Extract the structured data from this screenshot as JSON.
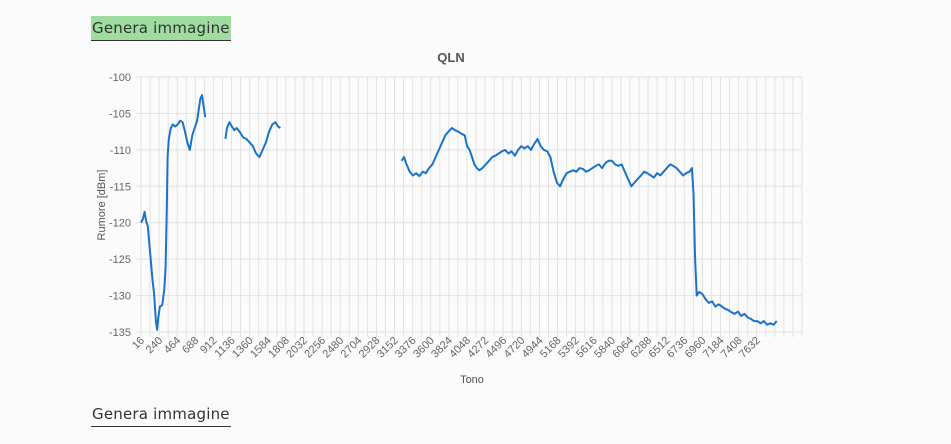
{
  "buttons": {
    "generate_top": "Genera immagine",
    "generate_bottom": "Genera immagine"
  },
  "colors": {
    "line": "#1a73c9",
    "grid": "#e2e2e2",
    "button_active_bg": "#9fdc9f"
  },
  "chart_data": {
    "type": "line",
    "title": "QLN",
    "xlabel": "Tono",
    "ylabel": "Rumore [dBm]",
    "ylim": [
      -135,
      -100
    ],
    "xlim": [
      16,
      8192
    ],
    "grid": true,
    "y_ticks": [
      "-100",
      "-105",
      "-110",
      "-115",
      "-120",
      "-125",
      "-130",
      "-135"
    ],
    "x_ticks": [
      "16",
      "240",
      "464",
      "688",
      "912",
      "1136",
      "1360",
      "1584",
      "1808",
      "2032",
      "2256",
      "2480",
      "2704",
      "2928",
      "3152",
      "3376",
      "3600",
      "3824",
      "4048",
      "4272",
      "4496",
      "4720",
      "4944",
      "5168",
      "5392",
      "5616",
      "5840",
      "6064",
      "6288",
      "6512",
      "6736",
      "6960",
      "7184",
      "7408",
      "7632"
    ],
    "series": [
      {
        "segments": [
          [
            [
              16,
              -120
            ],
            [
              40,
              -119.5
            ],
            [
              60,
              -118.5
            ],
            [
              80,
              -119.8
            ],
            [
              100,
              -120.5
            ],
            [
              120,
              -123
            ],
            [
              140,
              -125.5
            ],
            [
              160,
              -128
            ],
            [
              175,
              -129.5
            ],
            [
              185,
              -131
            ],
            [
              200,
              -133.5
            ],
            [
              215,
              -134.7
            ],
            [
              230,
              -133
            ],
            [
              250,
              -131.5
            ],
            [
              280,
              -131.3
            ],
            [
              305,
              -129
            ],
            [
              320,
              -126
            ],
            [
              335,
              -118
            ],
            [
              345,
              -111
            ],
            [
              360,
              -108.5
            ],
            [
              385,
              -107
            ],
            [
              410,
              -106.5
            ],
            [
              440,
              -106.8
            ],
            [
              470,
              -106.5
            ],
            [
              500,
              -106
            ],
            [
              530,
              -106.2
            ],
            [
              560,
              -107.5
            ],
            [
              590,
              -109
            ],
            [
              620,
              -110
            ],
            [
              650,
              -108
            ],
            [
              680,
              -107
            ],
            [
              710,
              -106
            ],
            [
              730,
              -104.5
            ],
            [
              750,
              -103
            ],
            [
              770,
              -102.5
            ],
            [
              790,
              -104
            ],
            [
              810,
              -105.5
            ]
          ],
          [
            [
              1060,
              -108.5
            ],
            [
              1080,
              -107
            ],
            [
              1110,
              -106.2
            ],
            [
              1140,
              -106.8
            ],
            [
              1170,
              -107.3
            ],
            [
              1200,
              -107
            ],
            [
              1240,
              -107.6
            ],
            [
              1280,
              -108.3
            ],
            [
              1320,
              -108.5
            ],
            [
              1360,
              -109
            ],
            [
              1400,
              -109.5
            ],
            [
              1440,
              -110.5
            ],
            [
              1480,
              -111
            ],
            [
              1520,
              -110
            ],
            [
              1560,
              -109
            ],
            [
              1600,
              -107.5
            ],
            [
              1640,
              -106.5
            ],
            [
              1680,
              -106.2
            ],
            [
              1710,
              -106.8
            ],
            [
              1740,
              -107
            ]
          ],
          [
            [
              3240,
              -111.5
            ],
            [
              3270,
              -111
            ],
            [
              3300,
              -112
            ],
            [
              3340,
              -113
            ],
            [
              3380,
              -113.5
            ],
            [
              3420,
              -113.2
            ],
            [
              3460,
              -113.6
            ],
            [
              3500,
              -113
            ],
            [
              3540,
              -113.2
            ],
            [
              3580,
              -112.5
            ],
            [
              3620,
              -112
            ],
            [
              3660,
              -111
            ],
            [
              3700,
              -110
            ],
            [
              3740,
              -109
            ],
            [
              3780,
              -108
            ],
            [
              3820,
              -107.5
            ],
            [
              3860,
              -107
            ],
            [
              3900,
              -107.3
            ],
            [
              3940,
              -107.5
            ],
            [
              3980,
              -107.8
            ],
            [
              4020,
              -108
            ],
            [
              4050,
              -109.5
            ],
            [
              4080,
              -110
            ],
            [
              4110,
              -111
            ],
            [
              4140,
              -112
            ],
            [
              4170,
              -112.5
            ],
            [
              4200,
              -112.8
            ],
            [
              4240,
              -112.5
            ],
            [
              4280,
              -112
            ],
            [
              4320,
              -111.5
            ],
            [
              4360,
              -111
            ],
            [
              4400,
              -110.8
            ],
            [
              4440,
              -110.5
            ],
            [
              4480,
              -110.2
            ],
            [
              4520,
              -110
            ],
            [
              4560,
              -110.5
            ],
            [
              4600,
              -110.2
            ],
            [
              4640,
              -110.8
            ],
            [
              4680,
              -110
            ],
            [
              4720,
              -109.5
            ],
            [
              4760,
              -109.8
            ],
            [
              4800,
              -109.5
            ],
            [
              4840,
              -110
            ],
            [
              4880,
              -109.2
            ],
            [
              4920,
              -108.5
            ],
            [
              4960,
              -109.5
            ],
            [
              5000,
              -110
            ],
            [
              5040,
              -110.2
            ],
            [
              5080,
              -111
            ],
            [
              5120,
              -113
            ],
            [
              5160,
              -114.5
            ],
            [
              5200,
              -115
            ],
            [
              5240,
              -114
            ],
            [
              5280,
              -113.2
            ],
            [
              5320,
              -113
            ],
            [
              5360,
              -112.8
            ],
            [
              5400,
              -113
            ],
            [
              5440,
              -112.5
            ],
            [
              5480,
              -112.6
            ],
            [
              5520,
              -113
            ],
            [
              5560,
              -112.8
            ],
            [
              5600,
              -112.5
            ],
            [
              5640,
              -112.2
            ],
            [
              5680,
              -112
            ],
            [
              5720,
              -112.5
            ],
            [
              5760,
              -111.8
            ],
            [
              5800,
              -111.5
            ],
            [
              5840,
              -111.5
            ],
            [
              5880,
              -112
            ],
            [
              5920,
              -112.2
            ],
            [
              5960,
              -112
            ],
            [
              6000,
              -113
            ],
            [
              6040,
              -114
            ],
            [
              6080,
              -115
            ],
            [
              6120,
              -114.5
            ],
            [
              6160,
              -114
            ],
            [
              6200,
              -113.5
            ],
            [
              6240,
              -113
            ],
            [
              6280,
              -113.2
            ],
            [
              6320,
              -113.5
            ],
            [
              6360,
              -113.8
            ],
            [
              6400,
              -113.2
            ],
            [
              6440,
              -113.5
            ],
            [
              6480,
              -113
            ],
            [
              6520,
              -112.5
            ],
            [
              6560,
              -112
            ],
            [
              6600,
              -112.2
            ],
            [
              6640,
              -112.5
            ],
            [
              6680,
              -113
            ],
            [
              6720,
              -113.5
            ],
            [
              6760,
              -113.2
            ],
            [
              6800,
              -113
            ],
            [
              6830,
              -112.5
            ],
            [
              6850,
              -116
            ],
            [
              6870,
              -125
            ],
            [
              6890,
              -130
            ],
            [
              6920,
              -129.5
            ],
            [
              6960,
              -129.8
            ],
            [
              7000,
              -130.5
            ],
            [
              7040,
              -131
            ],
            [
              7080,
              -130.8
            ],
            [
              7120,
              -131.5
            ],
            [
              7160,
              -131.2
            ],
            [
              7200,
              -131.5
            ],
            [
              7240,
              -131.8
            ],
            [
              7280,
              -132
            ],
            [
              7320,
              -132.3
            ],
            [
              7360,
              -132.5
            ],
            [
              7400,
              -132.2
            ],
            [
              7440,
              -132.8
            ],
            [
              7480,
              -132.5
            ],
            [
              7520,
              -133
            ],
            [
              7560,
              -133.2
            ],
            [
              7600,
              -133.5
            ],
            [
              7640,
              -133.5
            ],
            [
              7680,
              -133.8
            ],
            [
              7720,
              -133.5
            ],
            [
              7760,
              -134
            ],
            [
              7800,
              -133.8
            ],
            [
              7840,
              -134
            ],
            [
              7880,
              -133.5
            ]
          ]
        ]
      }
    ]
  }
}
